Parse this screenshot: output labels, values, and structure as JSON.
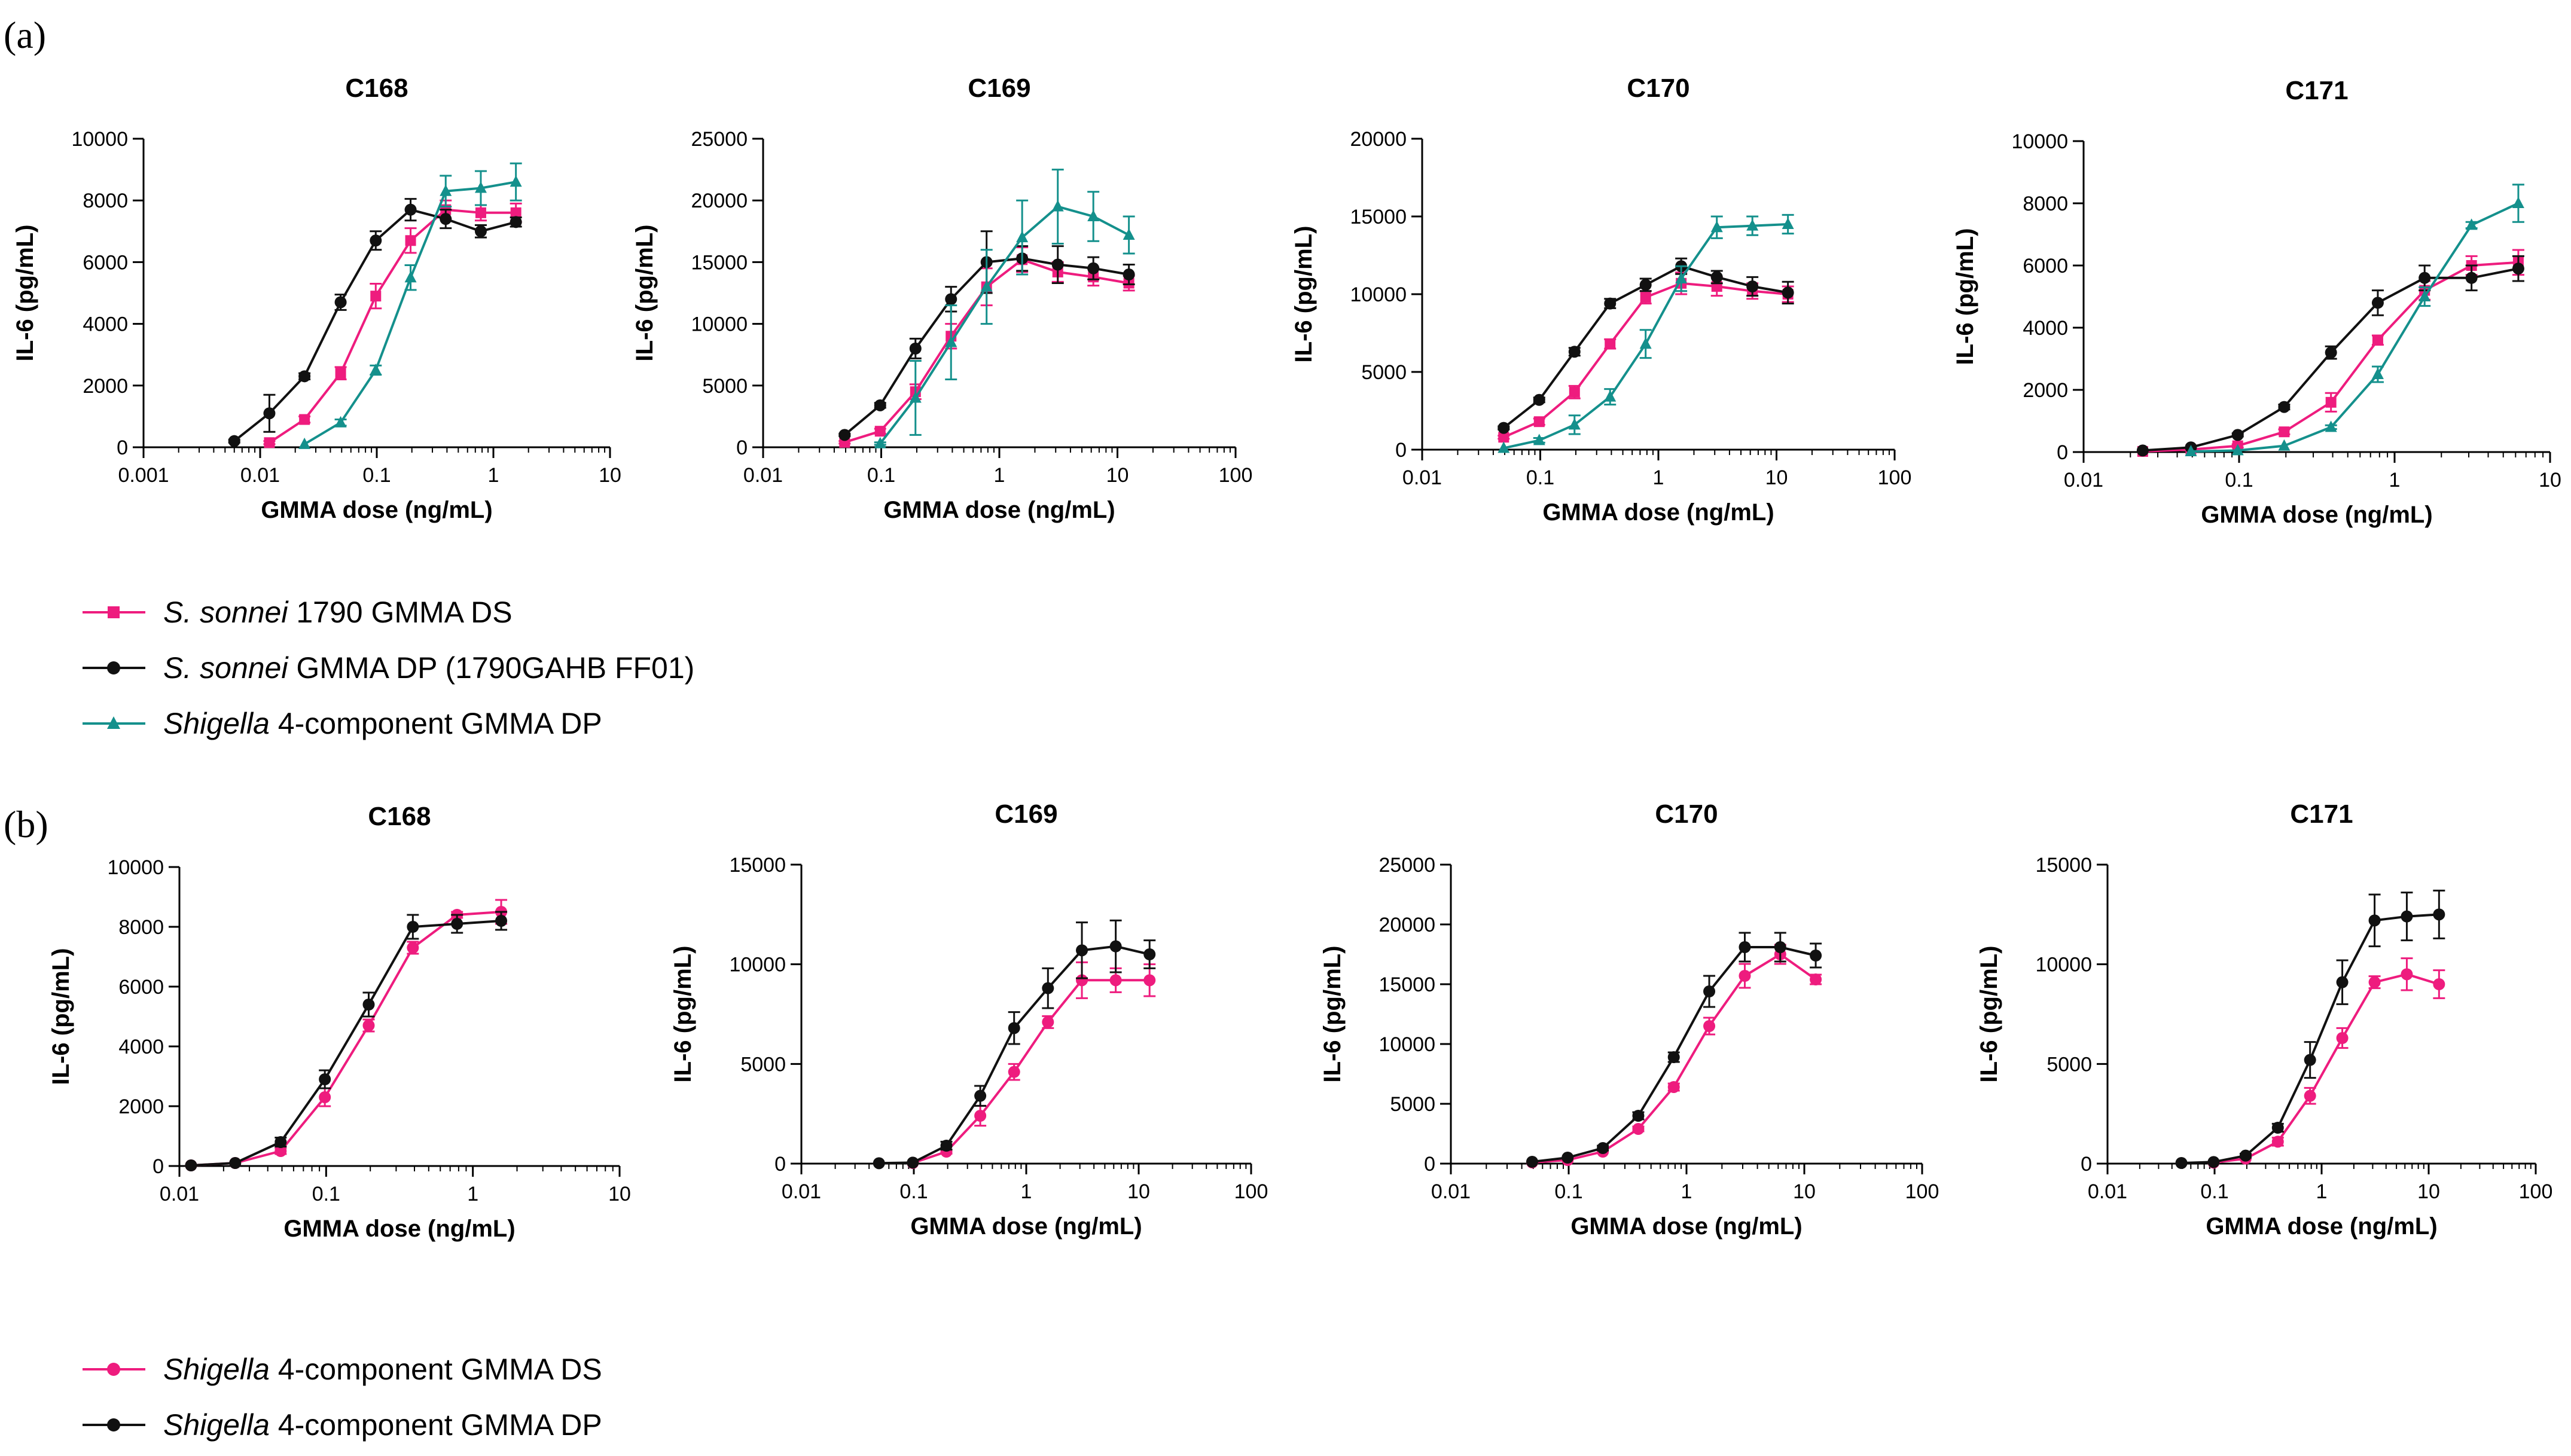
{
  "panel_labels": [
    "(a)",
    "(b)"
  ],
  "colors": {
    "pink": "#EE1C7E",
    "black": "#111111",
    "teal": "#14908C"
  },
  "legend_a": [
    {
      "italic": "S. sonnei",
      "rest": " 1790 GMMA DS",
      "color": "#EE1C7E",
      "marker": "square"
    },
    {
      "italic": "S. sonnei",
      "rest": " GMMA DP (1790GAHB FF01)",
      "color": "#111111",
      "marker": "circle"
    },
    {
      "italic": "Shigella",
      "rest": " 4-component GMMA DP",
      "color": "#14908C",
      "marker": "triangle"
    }
  ],
  "legend_b": [
    {
      "italic": "Shigella",
      "rest": " 4-component GMMA DS",
      "color": "#EE1C7E",
      "marker": "circle"
    },
    {
      "italic": "Shigella",
      "rest": " 4-component GMMA DP",
      "color": "#111111",
      "marker": "circle"
    }
  ],
  "chart_data": [
    {
      "panel": "a",
      "type": "line",
      "title": "C168",
      "xlabel": "GMMA dose (ng/mL)",
      "ylabel": "IL-6 (pg/mL)",
      "xscale": "log",
      "xlim": [
        0.001,
        10
      ],
      "xticks": [
        "0.001",
        "0.01",
        "0.1",
        "1",
        "10"
      ],
      "ylim": [
        0,
        10000
      ],
      "yticks": [
        "0",
        "2000",
        "4000",
        "6000",
        "8000",
        "10000"
      ],
      "series": [
        {
          "name": "S. sonnei 1790 GMMA DS",
          "color": "#EE1C7E",
          "marker": "square",
          "x": [
            0.012,
            0.024,
            0.049,
            0.098,
            0.195,
            0.39,
            0.78,
            1.56
          ],
          "y": [
            150,
            900,
            2400,
            4900,
            6700,
            7700,
            7600,
            7600
          ],
          "err": [
            50,
            100,
            200,
            400,
            400,
            300,
            250,
            300
          ]
        },
        {
          "name": "S. sonnei GMMA DP (1790GAHB FF01)",
          "color": "#111111",
          "marker": "circle",
          "x": [
            0.006,
            0.012,
            0.024,
            0.049,
            0.098,
            0.195,
            0.39,
            0.78,
            1.56
          ],
          "y": [
            200,
            1100,
            2300,
            4700,
            6700,
            7700,
            7400,
            7000,
            7300
          ],
          "err": [
            50,
            600,
            100,
            250,
            300,
            350,
            300,
            200,
            150
          ]
        },
        {
          "name": "Shigella 4-component GMMA DP",
          "color": "#14908C",
          "marker": "triangle",
          "x": [
            0.024,
            0.049,
            0.098,
            0.195,
            0.39,
            0.78,
            1.56
          ],
          "y": [
            100,
            800,
            2500,
            5500,
            8300,
            8400,
            8600
          ],
          "err": [
            30,
            100,
            150,
            400,
            500,
            550,
            600
          ]
        }
      ]
    },
    {
      "panel": "a",
      "type": "line",
      "title": "C169",
      "xlabel": "GMMA dose (ng/mL)",
      "ylabel": "IL-6 (pg/mL)",
      "xscale": "log",
      "xlim": [
        0.01,
        100
      ],
      "xticks": [
        "0.01",
        "0.1",
        "1",
        "10",
        "100"
      ],
      "ylim": [
        0,
        25000
      ],
      "yticks": [
        "0",
        "5000",
        "10000",
        "15000",
        "20000",
        "25000"
      ],
      "series": [
        {
          "name": "S. sonnei 1790 GMMA DS",
          "color": "#EE1C7E",
          "marker": "square",
          "x": [
            0.049,
            0.098,
            0.195,
            0.39,
            0.78,
            1.56,
            3.125,
            6.25,
            12.5
          ],
          "y": [
            400,
            1300,
            4500,
            9000,
            13000,
            15200,
            14200,
            13800,
            13300
          ],
          "err": [
            100,
            200,
            600,
            1000,
            1500,
            1000,
            800,
            700,
            600
          ]
        },
        {
          "name": "S. sonnei GMMA DP (1790GAHB FF01)",
          "color": "#111111",
          "marker": "circle",
          "x": [
            0.049,
            0.098,
            0.195,
            0.39,
            0.78,
            1.56,
            3.125,
            6.25,
            12.5
          ],
          "y": [
            1000,
            3400,
            8000,
            12000,
            15000,
            15300,
            14800,
            14500,
            14000
          ],
          "err": [
            100,
            200,
            800,
            1000,
            2500,
            1000,
            1500,
            900,
            800
          ]
        },
        {
          "name": "Shigella 4-component GMMA DP",
          "color": "#14908C",
          "marker": "triangle",
          "x": [
            0.098,
            0.195,
            0.39,
            0.78,
            1.56,
            3.125,
            6.25,
            12.5
          ],
          "y": [
            300,
            4000,
            8500,
            13000,
            17000,
            19500,
            18700,
            17200
          ],
          "err": [
            100,
            3000,
            3000,
            3000,
            3000,
            3000,
            2000,
            1500
          ]
        }
      ]
    },
    {
      "panel": "a",
      "type": "line",
      "title": "C170",
      "xlabel": "GMMA dose (ng/mL)",
      "ylabel": "IL-6 (pg/mL)",
      "xscale": "log",
      "xlim": [
        0.01,
        100
      ],
      "xticks": [
        "0.01",
        "0.1",
        "1",
        "10",
        "100"
      ],
      "ylim": [
        0,
        20000
      ],
      "yticks": [
        "0",
        "5000",
        "10000",
        "15000",
        "20000"
      ],
      "series": [
        {
          "name": "S. sonnei 1790 GMMA DS",
          "color": "#EE1C7E",
          "marker": "square",
          "x": [
            0.049,
            0.098,
            0.195,
            0.39,
            0.78,
            1.56,
            3.125,
            6.25,
            12.5
          ],
          "y": [
            800,
            1800,
            3700,
            6800,
            9800,
            10700,
            10500,
            10200,
            10000
          ],
          "err": [
            100,
            200,
            400,
            300,
            400,
            700,
            600,
            500,
            500
          ]
        },
        {
          "name": "S. sonnei GMMA DP (1790GAHB FF01)",
          "color": "#111111",
          "marker": "circle",
          "x": [
            0.049,
            0.098,
            0.195,
            0.39,
            0.78,
            1.56,
            3.125,
            6.25,
            12.5
          ],
          "y": [
            1400,
            3200,
            6300,
            9400,
            10600,
            11800,
            11100,
            10500,
            10100
          ],
          "err": [
            100,
            150,
            250,
            300,
            400,
            500,
            400,
            600,
            700
          ]
        },
        {
          "name": "Shigella 4-component GMMA DP",
          "color": "#14908C",
          "marker": "triangle",
          "x": [
            0.049,
            0.098,
            0.195,
            0.39,
            0.78,
            1.56,
            3.125,
            6.25,
            12.5
          ],
          "y": [
            100,
            600,
            1600,
            3400,
            6800,
            11000,
            14300,
            14400,
            14500
          ],
          "err": [
            50,
            150,
            600,
            500,
            900,
            800,
            700,
            600,
            600
          ]
        }
      ]
    },
    {
      "panel": "a",
      "type": "line",
      "title": "C171",
      "xlabel": "GMMA dose (ng/mL)",
      "ylabel": "IL-6 (pg/mL)",
      "xscale": "log",
      "xlim": [
        0.01,
        10
      ],
      "xticks": [
        "0.01",
        "0.1",
        "1",
        "10"
      ],
      "ylim": [
        0,
        10000
      ],
      "yticks": [
        "0",
        "2000",
        "4000",
        "6000",
        "8000",
        "10000"
      ],
      "series": [
        {
          "name": "S. sonnei 1790 GMMA DS",
          "color": "#EE1C7E",
          "marker": "square",
          "x": [
            0.024,
            0.049,
            0.098,
            0.195,
            0.39,
            0.78,
            1.56,
            3.125,
            6.25
          ],
          "y": [
            20,
            80,
            200,
            650,
            1600,
            3600,
            5200,
            6000,
            6100
          ],
          "err": [
            20,
            20,
            50,
            80,
            300,
            150,
            300,
            300,
            400
          ]
        },
        {
          "name": "S. sonnei GMMA DP (1790GAHB FF01)",
          "color": "#111111",
          "marker": "circle",
          "x": [
            0.024,
            0.049,
            0.098,
            0.195,
            0.39,
            0.78,
            1.56,
            3.125,
            6.25
          ],
          "y": [
            50,
            150,
            550,
            1450,
            3200,
            4800,
            5600,
            5600,
            5900
          ],
          "err": [
            20,
            30,
            50,
            80,
            200,
            400,
            400,
            400,
            400
          ]
        },
        {
          "name": "Shigella 4-component GMMA DP",
          "color": "#14908C",
          "marker": "triangle",
          "x": [
            0.049,
            0.098,
            0.195,
            0.39,
            0.78,
            1.56,
            3.125,
            6.25
          ],
          "y": [
            20,
            50,
            200,
            800,
            2500,
            5000,
            7300,
            8000
          ],
          "err": [
            10,
            20,
            30,
            60,
            250,
            300,
            100,
            600
          ]
        }
      ]
    },
    {
      "panel": "b",
      "type": "line",
      "title": "C168",
      "xlabel": "GMMA dose (ng/mL)",
      "ylabel": "IL-6 (pg/mL)",
      "xscale": "log",
      "xlim": [
        0.01,
        10
      ],
      "xticks": [
        "0.01",
        "0.1",
        "1",
        "10"
      ],
      "ylim": [
        0,
        10000
      ],
      "yticks": [
        "0",
        "2000",
        "4000",
        "6000",
        "8000",
        "10000"
      ],
      "series": [
        {
          "name": "Shigella 4-component GMMA DS",
          "color": "#EE1C7E",
          "marker": "circle",
          "x": [
            0.012,
            0.024,
            0.049,
            0.098,
            0.195,
            0.39,
            0.78,
            1.56
          ],
          "y": [
            20,
            100,
            500,
            2300,
            4700,
            7300,
            8400,
            8500
          ],
          "err": [
            10,
            40,
            100,
            300,
            200,
            200,
            100,
            400
          ]
        },
        {
          "name": "Shigella 4-component GMMA DP",
          "color": "#111111",
          "marker": "circle",
          "x": [
            0.012,
            0.024,
            0.049,
            0.098,
            0.195,
            0.39,
            0.78,
            1.56
          ],
          "y": [
            20,
            100,
            800,
            2900,
            5400,
            8000,
            8100,
            8200
          ],
          "err": [
            10,
            40,
            150,
            300,
            400,
            400,
            300,
            300
          ]
        }
      ]
    },
    {
      "panel": "b",
      "type": "line",
      "title": "C169",
      "xlabel": "GMMA dose (ng/mL)",
      "ylabel": "IL-6 (pg/mL)",
      "xscale": "log",
      "xlim": [
        0.01,
        100
      ],
      "xticks": [
        "0.01",
        "0.1",
        "1",
        "10",
        "100"
      ],
      "ylim": [
        0,
        15000
      ],
      "yticks": [
        "0",
        "5000",
        "10000",
        "15000"
      ],
      "series": [
        {
          "name": "Shigella 4-component GMMA DS",
          "color": "#EE1C7E",
          "marker": "circle",
          "x": [
            0.098,
            0.195,
            0.39,
            0.78,
            1.56,
            3.125,
            6.25,
            12.5
          ],
          "y": [
            30,
            600,
            2400,
            4600,
            7100,
            9200,
            9200,
            9200
          ],
          "err": [
            20,
            100,
            500,
            400,
            300,
            900,
            600,
            800
          ]
        },
        {
          "name": "Shigella 4-component GMMA DP",
          "color": "#111111",
          "marker": "circle",
          "x": [
            0.049,
            0.098,
            0.195,
            0.39,
            0.78,
            1.56,
            3.125,
            6.25,
            12.5
          ],
          "y": [
            20,
            50,
            900,
            3400,
            6800,
            8800,
            10700,
            10900,
            10500
          ],
          "err": [
            10,
            20,
            200,
            500,
            800,
            1000,
            1400,
            1300,
            700
          ]
        }
      ]
    },
    {
      "panel": "b",
      "type": "line",
      "title": "C170",
      "xlabel": "GMMA dose (ng/mL)",
      "ylabel": "IL-6 (pg/mL)",
      "xscale": "log",
      "xlim": [
        0.01,
        100
      ],
      "xticks": [
        "0.01",
        "0.1",
        "1",
        "10",
        "100"
      ],
      "ylim": [
        0,
        25000
      ],
      "yticks": [
        "0",
        "5000",
        "10000",
        "15000",
        "20000",
        "25000"
      ],
      "series": [
        {
          "name": "Shigella 4-component GMMA DS",
          "color": "#EE1C7E",
          "marker": "circle",
          "x": [
            0.049,
            0.098,
            0.195,
            0.39,
            0.78,
            1.56,
            3.125,
            6.25,
            12.5
          ],
          "y": [
            100,
            300,
            1000,
            2900,
            6400,
            11500,
            15700,
            17500,
            15400
          ],
          "err": [
            50,
            50,
            100,
            200,
            300,
            700,
            1000,
            800,
            400
          ]
        },
        {
          "name": "Shigella 4-component GMMA DP",
          "color": "#111111",
          "marker": "circle",
          "x": [
            0.049,
            0.098,
            0.195,
            0.39,
            0.78,
            1.56,
            3.125,
            6.25,
            12.5
          ],
          "y": [
            150,
            500,
            1300,
            4000,
            8900,
            14400,
            18100,
            18100,
            17400
          ],
          "err": [
            50,
            100,
            200,
            300,
            400,
            1300,
            1200,
            1200,
            1000
          ]
        }
      ]
    },
    {
      "panel": "b",
      "type": "line",
      "title": "C171",
      "xlabel": "GMMA dose (ng/mL)",
      "ylabel": "IL-6 (pg/mL)",
      "xscale": "log",
      "xlim": [
        0.01,
        100
      ],
      "xticks": [
        "0.01",
        "0.1",
        "1",
        "10",
        "100"
      ],
      "ylim": [
        0,
        15000
      ],
      "yticks": [
        "0",
        "5000",
        "10000",
        "15000"
      ],
      "series": [
        {
          "name": "Shigella 4-component GMMA DS",
          "color": "#EE1C7E",
          "marker": "circle",
          "x": [
            0.098,
            0.195,
            0.39,
            0.78,
            1.56,
            3.125,
            6.25,
            12.5
          ],
          "y": [
            50,
            250,
            1100,
            3400,
            6300,
            9100,
            9500,
            9000
          ],
          "err": [
            20,
            50,
            200,
            400,
            500,
            300,
            800,
            700
          ]
        },
        {
          "name": "Shigella 4-component GMMA DP",
          "color": "#111111",
          "marker": "circle",
          "x": [
            0.049,
            0.098,
            0.195,
            0.39,
            0.78,
            1.56,
            3.125,
            6.25,
            12.5
          ],
          "y": [
            30,
            80,
            400,
            1800,
            5200,
            9100,
            12200,
            12400,
            12500
          ],
          "err": [
            10,
            20,
            100,
            200,
            900,
            1100,
            1300,
            1200,
            1200
          ]
        }
      ]
    }
  ]
}
